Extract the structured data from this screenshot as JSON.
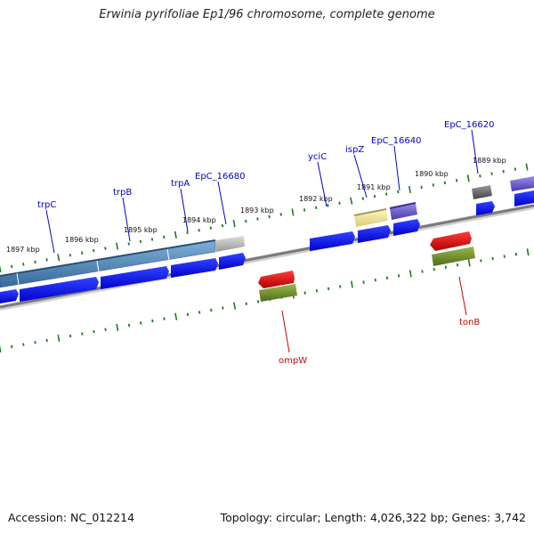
{
  "title": "Erwinia pyrifoliae Ep1/96 chromosome, complete genome",
  "footer": {
    "accession": "Accession: NC_012214",
    "stats": "Topology: circular; Length: 4,026,322 bp; Genes: 3,742"
  },
  "ticks": [
    {
      "id": "1897",
      "label": "1897 kbp"
    },
    {
      "id": "1896",
      "label": "1896 kbp"
    },
    {
      "id": "1895",
      "label": "1895 kbp"
    },
    {
      "id": "1894",
      "label": "1894 kbp"
    },
    {
      "id": "1893",
      "label": "1893 kbp"
    },
    {
      "id": "1892",
      "label": "1892 kbp"
    },
    {
      "id": "1891",
      "label": "1891 kbp"
    },
    {
      "id": "1890",
      "label": "1890 kbp"
    },
    {
      "id": "1889",
      "label": "1889 kbp"
    }
  ],
  "genes": {
    "trpC": "trpC",
    "trpB": "trpB",
    "trpA": "trpA",
    "ep16680": "EpC_16680",
    "yciC": "yciC",
    "ispZ": "ispZ",
    "ep16640": "EpC_16640",
    "ep16620": "EpC_16620",
    "ompW": "ompW",
    "tonB": "tonB"
  },
  "colors": {
    "backbone": "#808080",
    "tick": "#1f7a1f",
    "cds": "#0000ee",
    "blue_label": "#0000cc",
    "red_label": "#cc0000",
    "trp_feature": "#4f86b5",
    "ompW_feature": "#e00000",
    "ompW_cds": "#6b8e23",
    "yellow_feature": "#ece6a0",
    "purple_feature": "#6a5acd",
    "gray_feature": "#b5b5b5",
    "dark_gray_feature": "#666666"
  }
}
